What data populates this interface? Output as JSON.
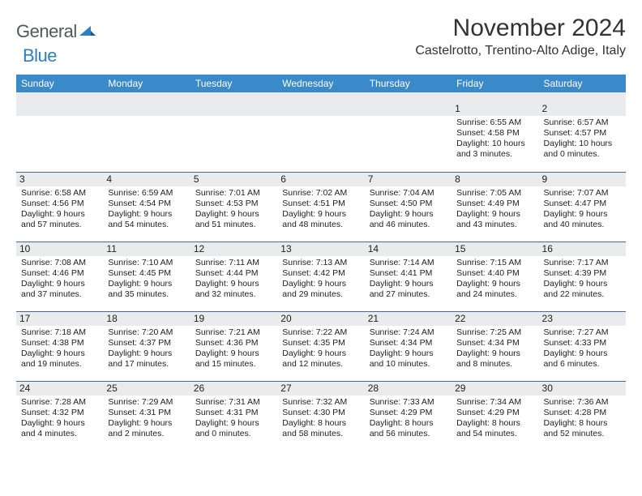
{
  "logo": {
    "part1": "General",
    "part2": "Blue"
  },
  "title": "November 2024",
  "location": "Castelrotto, Trentino-Alto Adige, Italy",
  "colors": {
    "header_bg": "#3a89c9",
    "header_text": "#ffffff",
    "daynum_bg": "#e9ebed",
    "cell_border": "#4a6a8a",
    "logo_gray": "#54585a",
    "logo_blue": "#2d7fc1",
    "text": "#222222"
  },
  "day_headers": [
    "Sunday",
    "Monday",
    "Tuesday",
    "Wednesday",
    "Thursday",
    "Friday",
    "Saturday"
  ],
  "weeks": [
    [
      null,
      null,
      null,
      null,
      null,
      {
        "n": "1",
        "sr": "6:55 AM",
        "ss": "4:58 PM",
        "dl": "10 hours and 3 minutes."
      },
      {
        "n": "2",
        "sr": "6:57 AM",
        "ss": "4:57 PM",
        "dl": "10 hours and 0 minutes."
      }
    ],
    [
      {
        "n": "3",
        "sr": "6:58 AM",
        "ss": "4:56 PM",
        "dl": "9 hours and 57 minutes."
      },
      {
        "n": "4",
        "sr": "6:59 AM",
        "ss": "4:54 PM",
        "dl": "9 hours and 54 minutes."
      },
      {
        "n": "5",
        "sr": "7:01 AM",
        "ss": "4:53 PM",
        "dl": "9 hours and 51 minutes."
      },
      {
        "n": "6",
        "sr": "7:02 AM",
        "ss": "4:51 PM",
        "dl": "9 hours and 48 minutes."
      },
      {
        "n": "7",
        "sr": "7:04 AM",
        "ss": "4:50 PM",
        "dl": "9 hours and 46 minutes."
      },
      {
        "n": "8",
        "sr": "7:05 AM",
        "ss": "4:49 PM",
        "dl": "9 hours and 43 minutes."
      },
      {
        "n": "9",
        "sr": "7:07 AM",
        "ss": "4:47 PM",
        "dl": "9 hours and 40 minutes."
      }
    ],
    [
      {
        "n": "10",
        "sr": "7:08 AM",
        "ss": "4:46 PM",
        "dl": "9 hours and 37 minutes."
      },
      {
        "n": "11",
        "sr": "7:10 AM",
        "ss": "4:45 PM",
        "dl": "9 hours and 35 minutes."
      },
      {
        "n": "12",
        "sr": "7:11 AM",
        "ss": "4:44 PM",
        "dl": "9 hours and 32 minutes."
      },
      {
        "n": "13",
        "sr": "7:13 AM",
        "ss": "4:42 PM",
        "dl": "9 hours and 29 minutes."
      },
      {
        "n": "14",
        "sr": "7:14 AM",
        "ss": "4:41 PM",
        "dl": "9 hours and 27 minutes."
      },
      {
        "n": "15",
        "sr": "7:15 AM",
        "ss": "4:40 PM",
        "dl": "9 hours and 24 minutes."
      },
      {
        "n": "16",
        "sr": "7:17 AM",
        "ss": "4:39 PM",
        "dl": "9 hours and 22 minutes."
      }
    ],
    [
      {
        "n": "17",
        "sr": "7:18 AM",
        "ss": "4:38 PM",
        "dl": "9 hours and 19 minutes."
      },
      {
        "n": "18",
        "sr": "7:20 AM",
        "ss": "4:37 PM",
        "dl": "9 hours and 17 minutes."
      },
      {
        "n": "19",
        "sr": "7:21 AM",
        "ss": "4:36 PM",
        "dl": "9 hours and 15 minutes."
      },
      {
        "n": "20",
        "sr": "7:22 AM",
        "ss": "4:35 PM",
        "dl": "9 hours and 12 minutes."
      },
      {
        "n": "21",
        "sr": "7:24 AM",
        "ss": "4:34 PM",
        "dl": "9 hours and 10 minutes."
      },
      {
        "n": "22",
        "sr": "7:25 AM",
        "ss": "4:34 PM",
        "dl": "9 hours and 8 minutes."
      },
      {
        "n": "23",
        "sr": "7:27 AM",
        "ss": "4:33 PM",
        "dl": "9 hours and 6 minutes."
      }
    ],
    [
      {
        "n": "24",
        "sr": "7:28 AM",
        "ss": "4:32 PM",
        "dl": "9 hours and 4 minutes."
      },
      {
        "n": "25",
        "sr": "7:29 AM",
        "ss": "4:31 PM",
        "dl": "9 hours and 2 minutes."
      },
      {
        "n": "26",
        "sr": "7:31 AM",
        "ss": "4:31 PM",
        "dl": "9 hours and 0 minutes."
      },
      {
        "n": "27",
        "sr": "7:32 AM",
        "ss": "4:30 PM",
        "dl": "8 hours and 58 minutes."
      },
      {
        "n": "28",
        "sr": "7:33 AM",
        "ss": "4:29 PM",
        "dl": "8 hours and 56 minutes."
      },
      {
        "n": "29",
        "sr": "7:34 AM",
        "ss": "4:29 PM",
        "dl": "8 hours and 54 minutes."
      },
      {
        "n": "30",
        "sr": "7:36 AM",
        "ss": "4:28 PM",
        "dl": "8 hours and 52 minutes."
      }
    ]
  ],
  "labels": {
    "sunrise": "Sunrise: ",
    "sunset": "Sunset: ",
    "daylight": "Daylight: "
  }
}
